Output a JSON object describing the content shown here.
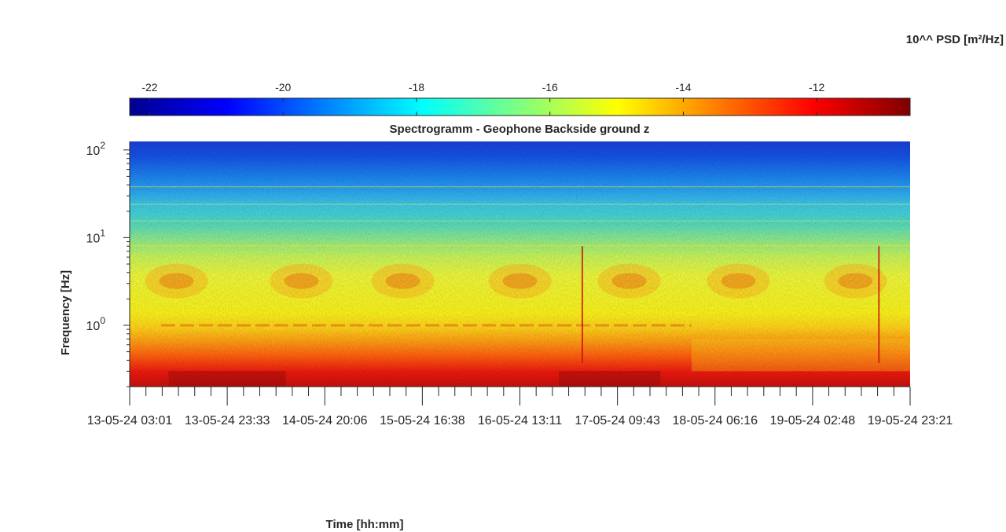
{
  "chart_data": {
    "type": "heatmap",
    "title": "Spectrogramm - Geophone Backside ground z",
    "xlabel": "Time [hh:mm]",
    "ylabel": "Frequency [Hz]",
    "colorbar_label": "10^^ PSD [m²/Hz]",
    "colorbar_ticks": [
      "-22",
      "-20",
      "-18",
      "-16",
      "-14",
      "-12"
    ],
    "colorbar_range": [
      -22.3,
      -10.6
    ],
    "colormap": "jet",
    "y_scale": "log",
    "y_range": [
      0.2,
      125
    ],
    "y_ticks": [
      {
        "value": 1,
        "base": "10",
        "exp": "0"
      },
      {
        "value": 10,
        "base": "10",
        "exp": "1"
      },
      {
        "value": 100,
        "base": "10",
        "exp": "2"
      }
    ],
    "x_tick_labels": [
      "13-05-24  03:01",
      "13-05-24  23:33",
      "14-05-24  20:06",
      "15-05-24  16:38",
      "16-05-24  13:11",
      "17-05-24  09:43",
      "18-05-24  06:16",
      "19-05-24  02:48",
      "19-05-24  23:21"
    ],
    "x_ticks_per_major": 6,
    "grid": false
  }
}
